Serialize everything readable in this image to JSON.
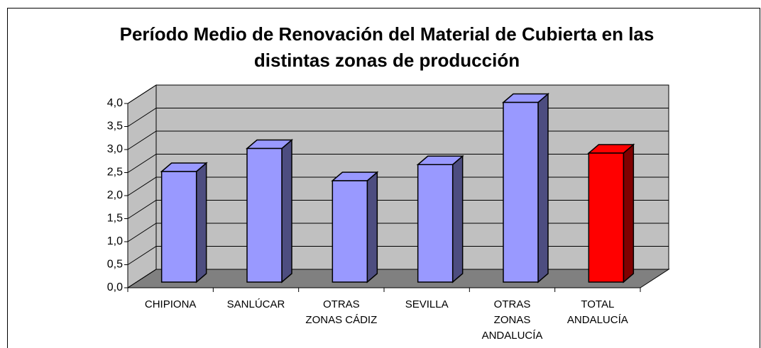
{
  "chart_data": {
    "type": "bar3d",
    "title": "Período Medio de Renovación del Material de Cubierta en las distintas zonas de producción",
    "categories": [
      "CHIPIONA",
      "SANLÚCAR",
      "OTRAS\nZONAS CÁDIZ",
      "SEVILLA",
      "OTRAS\nZONAS\nANDALUCÍA",
      "TOTAL\nANDALUCÍA"
    ],
    "values": [
      2.4,
      2.9,
      2.2,
      2.55,
      3.9,
      2.8
    ],
    "colors": [
      "#9999ff",
      "#9999ff",
      "#9999ff",
      "#9999ff",
      "#9999ff",
      "#ff0000"
    ],
    "ylim": [
      0,
      4
    ],
    "yticks": [
      {
        "value": 0,
        "label": "0,0"
      },
      {
        "value": 0.5,
        "label": "0,5"
      },
      {
        "value": 1,
        "label": "1,0"
      },
      {
        "value": 1.5,
        "label": "1,5"
      },
      {
        "value": 2,
        "label": "2,0"
      },
      {
        "value": 2.5,
        "label": "2,5"
      },
      {
        "value": 3,
        "label": "3,0"
      },
      {
        "value": 3.5,
        "label": "3,5"
      },
      {
        "value": 4,
        "label": "4,0"
      }
    ],
    "grid": true
  }
}
